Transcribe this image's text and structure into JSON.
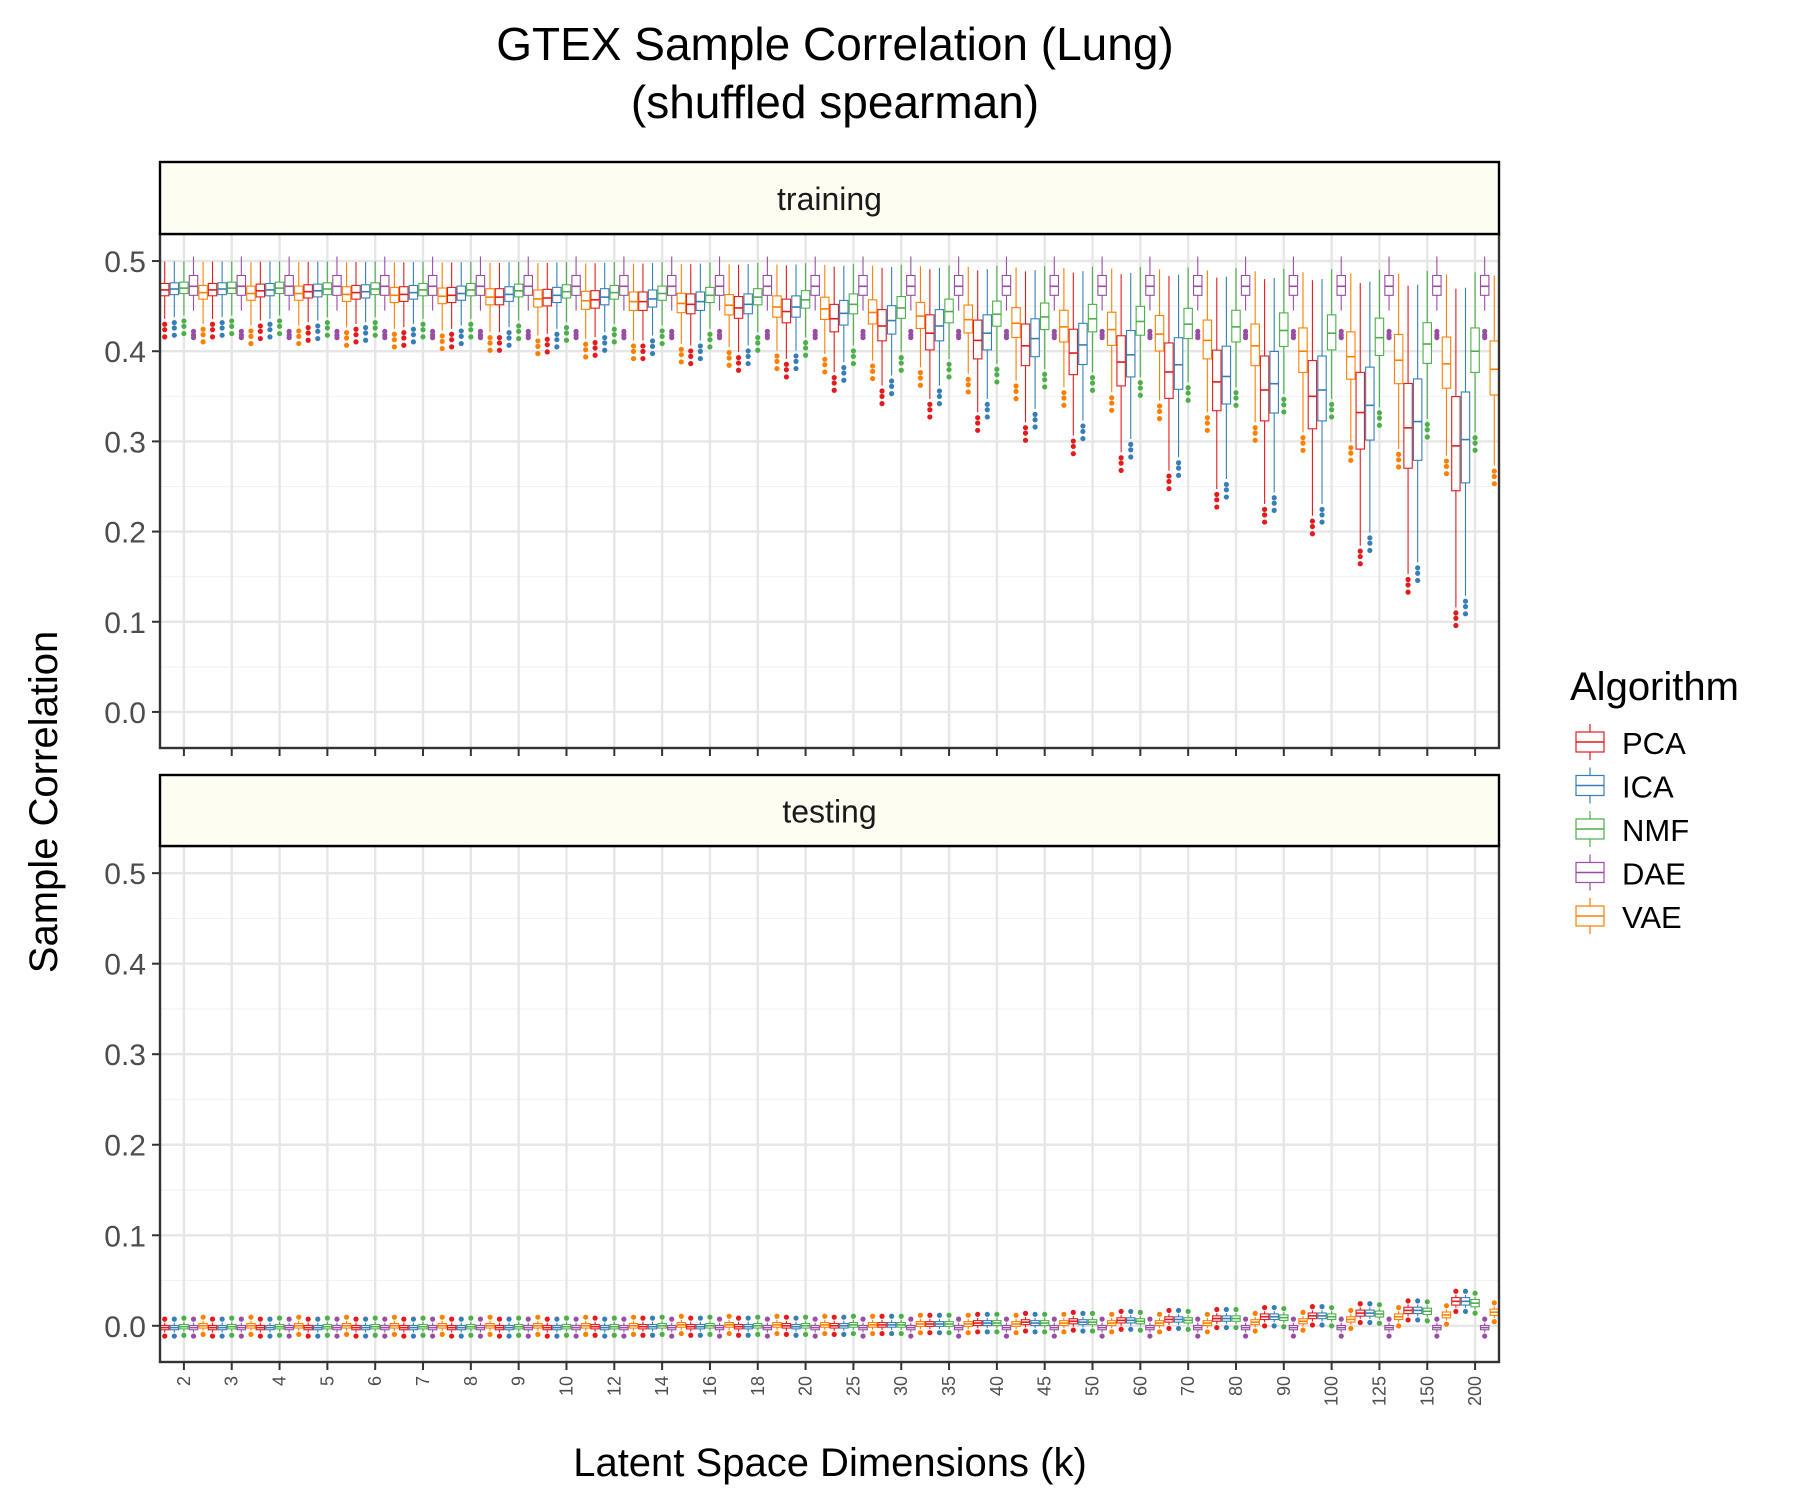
{
  "chart_data": {
    "type": "boxplot",
    "title_line1": "GTEX Sample Correlation (Lung)",
    "title_line2": "(shuffled spearman)",
    "xlabel": "Latent Space Dimensions (k)",
    "ylabel": "Sample Correlation",
    "ylim": [
      -0.04,
      0.53
    ],
    "yticks": [
      0.0,
      0.1,
      0.2,
      0.3,
      0.4,
      0.5
    ],
    "ytick_labels": [
      "0.0",
      "0.1",
      "0.2",
      "0.3",
      "0.4",
      "0.5"
    ],
    "categories": [
      "2",
      "3",
      "4",
      "5",
      "6",
      "7",
      "8",
      "9",
      "10",
      "12",
      "14",
      "16",
      "18",
      "20",
      "25",
      "30",
      "35",
      "40",
      "45",
      "50",
      "60",
      "70",
      "80",
      "90",
      "100",
      "125",
      "150",
      "200"
    ],
    "legend": {
      "title": "Algorithm",
      "position": "right",
      "entries": [
        {
          "name": "PCA",
          "color": "#e41a1c"
        },
        {
          "name": "ICA",
          "color": "#377eb8"
        },
        {
          "name": "NMF",
          "color": "#4daf4a"
        },
        {
          "name": "DAE",
          "color": "#984ea3"
        },
        {
          "name": "VAE",
          "color": "#ff7f00"
        }
      ]
    },
    "panels": [
      {
        "label": "training",
        "series": [
          {
            "name": "PCA",
            "medians": [
              0.468,
              0.468,
              0.467,
              0.466,
              0.465,
              0.463,
              0.462,
              0.46,
              0.459,
              0.457,
              0.455,
              0.452,
              0.448,
              0.444,
              0.436,
              0.428,
              0.42,
              0.412,
              0.406,
              0.398,
              0.388,
              0.377,
              0.366,
              0.357,
              0.35,
              0.332,
              0.315,
              0.295
            ]
          },
          {
            "name": "ICA",
            "medians": [
              0.469,
              0.469,
              0.468,
              0.467,
              0.466,
              0.465,
              0.464,
              0.463,
              0.462,
              0.46,
              0.458,
              0.455,
              0.452,
              0.449,
              0.442,
              0.434,
              0.428,
              0.42,
              0.414,
              0.407,
              0.396,
              0.385,
              0.372,
              0.364,
              0.357,
              0.34,
              0.322,
              0.302
            ]
          },
          {
            "name": "NMF",
            "medians": [
              0.47,
              0.47,
              0.47,
              0.469,
              0.469,
              0.468,
              0.468,
              0.467,
              0.466,
              0.465,
              0.464,
              0.462,
              0.46,
              0.457,
              0.452,
              0.448,
              0.444,
              0.441,
              0.438,
              0.436,
              0.433,
              0.43,
              0.427,
              0.423,
              0.42,
              0.415,
              0.408,
              0.4
            ]
          },
          {
            "name": "DAE",
            "medians": [
              0.472,
              0.472,
              0.472,
              0.472,
              0.472,
              0.472,
              0.472,
              0.472,
              0.472,
              0.472,
              0.472,
              0.472,
              0.472,
              0.472,
              0.472,
              0.472,
              0.472,
              0.472,
              0.472,
              0.472,
              0.472,
              0.472,
              0.472,
              0.472,
              0.472,
              0.472,
              0.472,
              0.472
            ]
          },
          {
            "name": "VAE",
            "medians": [
              0.465,
              0.464,
              0.464,
              0.463,
              0.462,
              0.461,
              0.46,
              0.458,
              0.456,
              0.455,
              0.453,
              0.451,
              0.449,
              0.447,
              0.443,
              0.439,
              0.435,
              0.431,
              0.427,
              0.424,
              0.419,
              0.412,
              0.406,
              0.4,
              0.394,
              0.39,
              0.386,
              0.38
            ]
          }
        ]
      },
      {
        "label": "testing",
        "series": [
          {
            "name": "PCA",
            "medians": [
              -0.002,
              -0.002,
              -0.002,
              -0.002,
              -0.002,
              -0.002,
              -0.002,
              -0.002,
              -0.002,
              -0.001,
              -0.001,
              -0.001,
              -0.001,
              0.0,
              0.0,
              0.001,
              0.002,
              0.003,
              0.004,
              0.005,
              0.006,
              0.007,
              0.008,
              0.01,
              0.011,
              0.014,
              0.017,
              0.027
            ]
          },
          {
            "name": "ICA",
            "medians": [
              -0.002,
              -0.002,
              -0.002,
              -0.002,
              -0.002,
              -0.002,
              -0.002,
              -0.002,
              -0.002,
              -0.002,
              -0.001,
              -0.001,
              -0.001,
              -0.001,
              0.0,
              0.001,
              0.002,
              0.003,
              0.003,
              0.004,
              0.006,
              0.007,
              0.008,
              0.01,
              0.011,
              0.014,
              0.017,
              0.027
            ]
          },
          {
            "name": "NMF",
            "medians": [
              -0.001,
              -0.001,
              -0.001,
              -0.001,
              -0.001,
              -0.001,
              -0.001,
              -0.001,
              -0.001,
              -0.001,
              0.0,
              0.0,
              0.0,
              0.0,
              0.001,
              0.001,
              0.002,
              0.003,
              0.003,
              0.004,
              0.005,
              0.006,
              0.008,
              0.009,
              0.01,
              0.013,
              0.016,
              0.025
            ]
          },
          {
            "name": "DAE",
            "medians": [
              -0.002,
              -0.002,
              -0.002,
              -0.002,
              -0.002,
              -0.002,
              -0.002,
              -0.002,
              -0.002,
              -0.002,
              -0.002,
              -0.002,
              -0.002,
              -0.002,
              -0.002,
              -0.002,
              -0.002,
              -0.002,
              -0.002,
              -0.002,
              -0.002,
              -0.002,
              -0.002,
              -0.002,
              -0.002,
              -0.002,
              -0.002,
              -0.002
            ]
          },
          {
            "name": "VAE",
            "medians": [
              0.0,
              0.0,
              0.0,
              0.0,
              0.0,
              0.0,
              0.0,
              0.0,
              0.0,
              0.0,
              0.001,
              0.001,
              0.001,
              0.001,
              0.001,
              0.002,
              0.002,
              0.002,
              0.003,
              0.003,
              0.003,
              0.003,
              0.004,
              0.005,
              0.007,
              0.01,
              0.012,
              0.015
            ]
          }
        ]
      }
    ]
  }
}
